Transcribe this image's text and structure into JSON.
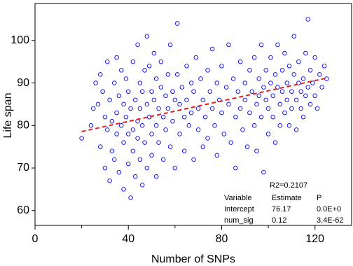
{
  "chart_data": {
    "type": "scatter",
    "x_label": "Number of SNPs",
    "y_label": "Life span",
    "xlim": [
      0,
      135.7
    ],
    "ylim": [
      56.5,
      108.7
    ],
    "xticks": [
      0,
      40,
      80,
      120
    ],
    "x_minor_ticks": [
      20,
      60,
      100
    ],
    "yticks": [
      60,
      70,
      80,
      90,
      100
    ],
    "color": "#0000ff",
    "x": [
      20,
      24,
      25,
      26,
      27,
      28,
      28,
      29,
      30,
      30,
      31,
      31,
      32,
      32,
      33,
      33,
      34,
      34,
      35,
      35,
      35,
      36,
      36,
      37,
      37,
      38,
      38,
      38,
      39,
      39,
      40,
      40,
      40,
      41,
      41,
      42,
      42,
      42,
      43,
      43,
      44,
      44,
      44,
      45,
      45,
      45,
      46,
      46,
      46,
      47,
      47,
      48,
      48,
      48,
      49,
      49,
      50,
      50,
      50,
      51,
      51,
      52,
      52,
      52,
      53,
      53,
      54,
      54,
      55,
      55,
      56,
      56,
      57,
      57,
      58,
      58,
      59,
      59,
      60,
      60,
      61,
      61,
      62,
      62,
      63,
      64,
      64,
      65,
      65,
      66,
      67,
      67,
      68,
      68,
      69,
      70,
      70,
      71,
      72,
      72,
      73,
      74,
      74,
      75,
      76,
      76,
      77,
      78,
      78,
      79,
      80,
      80,
      81,
      82,
      83,
      83,
      84,
      85,
      86,
      86,
      87,
      88,
      88,
      89,
      90,
      90,
      91,
      92,
      92,
      93,
      94,
      94,
      95,
      95,
      96,
      96,
      97,
      97,
      98,
      98,
      99,
      99,
      100,
      100,
      101,
      101,
      102,
      102,
      103,
      103,
      104,
      104,
      105,
      105,
      106,
      106,
      107,
      107,
      108,
      108,
      109,
      109,
      110,
      110,
      111,
      111,
      112,
      112,
      113,
      113,
      114,
      114,
      115,
      115,
      116,
      116,
      117,
      117,
      118,
      118,
      119,
      120,
      120,
      121,
      122,
      123,
      124,
      125
    ],
    "y": [
      77,
      80,
      84,
      90,
      85,
      92,
      75,
      88,
      82,
      70,
      79,
      95,
      86,
      67,
      81,
      74,
      90,
      72,
      83,
      78,
      96,
      69,
      87,
      80,
      93,
      76,
      85,
      65,
      82,
      91,
      78,
      71,
      88,
      84,
      63,
      79,
      95,
      74,
      86,
      68,
      81,
      99,
      77,
      90,
      72,
      84,
      66,
      88,
      80,
      93,
      76,
      85,
      70,
      101,
      82,
      94,
      78,
      88,
      73,
      86,
      97,
      80,
      68,
      91,
      84,
      76,
      89,
      95,
      82,
      72,
      87,
      79,
      92,
      84,
      75,
      99,
      88,
      81,
      86,
      70,
      92,
      104,
      78,
      85,
      89,
      82,
      74,
      94,
      86,
      80,
      90,
      83,
      72,
      88,
      96,
      84,
      79,
      91,
      75,
      86,
      82,
      93,
      77,
      88,
      84,
      98,
      80,
      90,
      73,
      86,
      83,
      94,
      78,
      89,
      85,
      99,
      76,
      91,
      82,
      70,
      88,
      84,
      95,
      79,
      90,
      86,
      75,
      93,
      83,
      88,
      80,
      96,
      85,
      74,
      91,
      87,
      82,
      99,
      89,
      69,
      86,
      93,
      84,
      78,
      90,
      96,
      87,
      82,
      92,
      76,
      89,
      99,
      85,
      80,
      93,
      88,
      83,
      97,
      90,
      86,
      80,
      94,
      88,
      84,
      92,
      101,
      86,
      79,
      90,
      95,
      84,
      88,
      91,
      82,
      97,
      87,
      89,
      105,
      85,
      93,
      90,
      87,
      96,
      84,
      92,
      89,
      94,
      91
    ],
    "trend_line": {
      "color": "#e02020",
      "x": [
        20,
        125
      ],
      "y": [
        78.57,
        91.17
      ]
    },
    "stats_table": {
      "r2": "R2=0.2107",
      "header": [
        "Variable",
        "Estimate",
        "P"
      ],
      "rows": [
        [
          "Intercept",
          "76.17",
          "0.0E+0"
        ],
        [
          "num_sig",
          "0.12",
          "3.4E-62"
        ]
      ]
    }
  }
}
